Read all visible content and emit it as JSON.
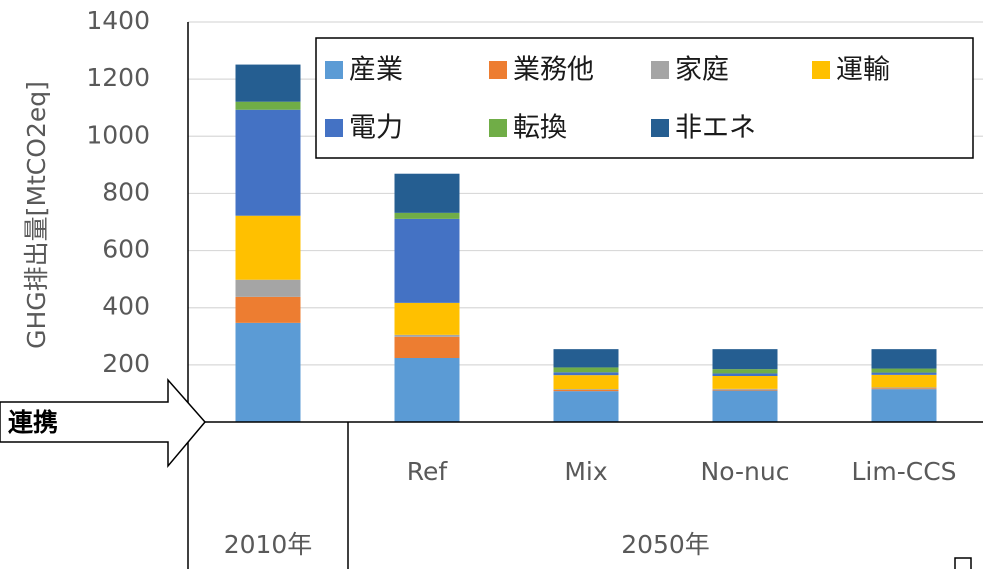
{
  "chart_data": {
    "type": "stacked_bar",
    "y_axis_label": "GHG排出量[MtCO2eq]",
    "categories": [
      null,
      "Ref",
      "Mix",
      "No-nuc",
      "Lim-CCS"
    ],
    "group_labels": [
      "2010年",
      "2050年"
    ],
    "annotation": "連携",
    "ylim": [
      0,
      1400
    ],
    "yticks": [
      200,
      400,
      600,
      800,
      1000,
      1200,
      1400
    ],
    "grid": true,
    "series": [
      {
        "name": "産業",
        "color": "#5b9bd5",
        "values": [
          347,
          224,
          108,
          110,
          115
        ]
      },
      {
        "name": "業務他",
        "color": "#ed7d31",
        "values": [
          91,
          74,
          4,
          3,
          3
        ]
      },
      {
        "name": "家庭",
        "color": "#a5a5a5",
        "values": [
          60,
          7,
          3,
          3,
          3
        ]
      },
      {
        "name": "運輸",
        "color": "#ffc000",
        "values": [
          224,
          112,
          49,
          45,
          44
        ]
      },
      {
        "name": "電力",
        "color": "#4472c4",
        "values": [
          371,
          294,
          10,
          9,
          8
        ]
      },
      {
        "name": "転換",
        "color": "#70ad47",
        "values": [
          28,
          21,
          17,
          15,
          14
        ]
      },
      {
        "name": "非エネ",
        "color": "#255e91",
        "values": [
          130,
          137,
          64,
          70,
          68
        ]
      }
    ]
  }
}
